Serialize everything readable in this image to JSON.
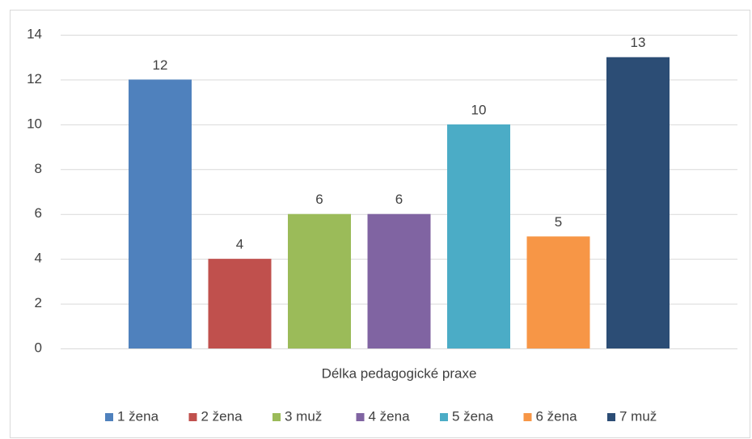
{
  "chart_data": {
    "type": "bar",
    "categories": [
      "Délka pedagogické praxe"
    ],
    "series": [
      {
        "name": "1 žena",
        "color": "#4f81bd",
        "values": [
          12
        ]
      },
      {
        "name": "2 žena",
        "color": "#c0504d",
        "values": [
          4
        ]
      },
      {
        "name": "3 muž",
        "color": "#9bbb59",
        "values": [
          6
        ]
      },
      {
        "name": "4 žena",
        "color": "#8064a2",
        "values": [
          6
        ]
      },
      {
        "name": "5 žena",
        "color": "#4bacc6",
        "values": [
          10
        ]
      },
      {
        "name": "6 žena",
        "color": "#f79646",
        "values": [
          5
        ]
      },
      {
        "name": "7 muž",
        "color": "#2c4d75",
        "values": [
          13
        ]
      }
    ],
    "ylim": [
      0,
      14
    ],
    "yticks": [
      0,
      2,
      4,
      6,
      8,
      10,
      12,
      14
    ],
    "grid": true,
    "legend": "bottom"
  }
}
